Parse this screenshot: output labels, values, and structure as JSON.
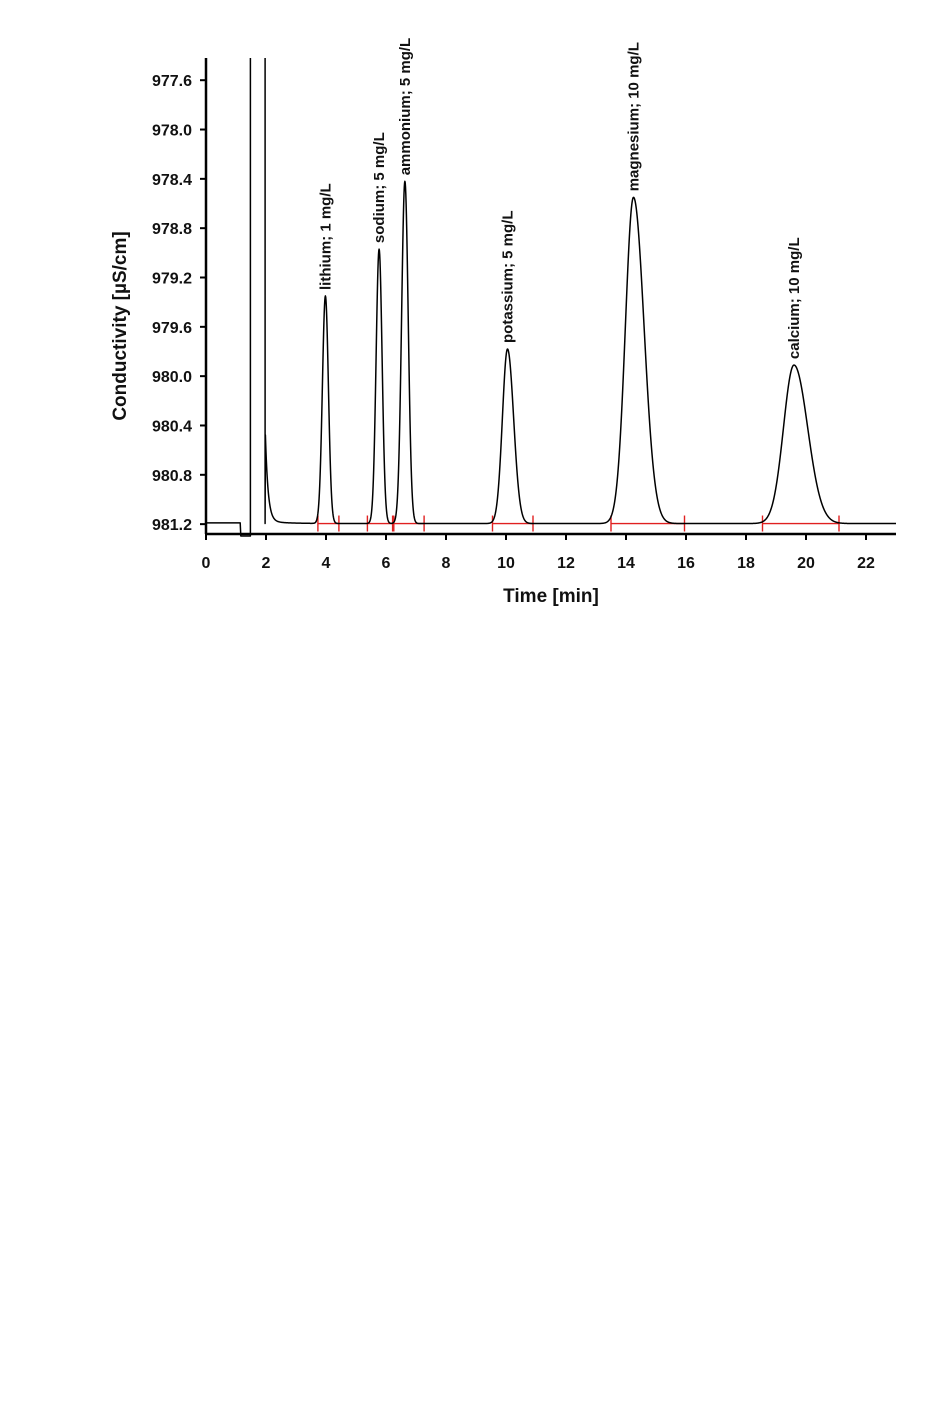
{
  "chart_data": {
    "type": "line",
    "title": "",
    "xlabel": "Time [min]",
    "ylabel": "Conductivity [µS/cm]",
    "xlim": [
      0,
      23
    ],
    "ylim": [
      981.28,
      977.42
    ],
    "y_axis_inverted": true,
    "grid": false,
    "xticks": [
      0,
      2,
      4,
      6,
      8,
      10,
      12,
      14,
      16,
      18,
      20,
      22
    ],
    "yticks": [
      "977.6",
      "978.0",
      "978.4",
      "978.8",
      "979.2",
      "979.6",
      "980.0",
      "980.4",
      "980.8",
      "981.2"
    ],
    "baseline": 981.195,
    "line_color": "#000000",
    "integration_color": "#e02020",
    "peaks": [
      {
        "label": "lithium; 1 mg/L",
        "time": 3.98,
        "top": 979.35,
        "width": 0.1,
        "tail": 1.0,
        "start": 3.73,
        "end": 4.43
      },
      {
        "label": "sodium; 5 mg/L",
        "time": 5.77,
        "top": 978.97,
        "width": 0.1,
        "tail": 1.0,
        "start": 5.38,
        "end": 6.22
      },
      {
        "label": "ammonium; 5 mg/L",
        "time": 6.63,
        "top": 978.42,
        "width": 0.11,
        "tail": 1.0,
        "start": 6.26,
        "end": 7.27
      },
      {
        "label": "potassium; 5 mg/L",
        "time": 10.05,
        "top": 979.78,
        "width": 0.17,
        "tail": 1.2,
        "start": 9.55,
        "end": 10.9
      },
      {
        "label": "magnesium; 10 mg/L",
        "time": 14.25,
        "top": 978.55,
        "width": 0.27,
        "tail": 1.3,
        "start": 13.5,
        "end": 15.95
      },
      {
        "label": "calcium; 10 mg/L",
        "time": 19.6,
        "top": 979.91,
        "width": 0.35,
        "tail": 1.3,
        "start": 18.55,
        "end": 21.1
      }
    ],
    "system_peak": {
      "time_start": 1.48,
      "time_end": 1.97
    }
  }
}
